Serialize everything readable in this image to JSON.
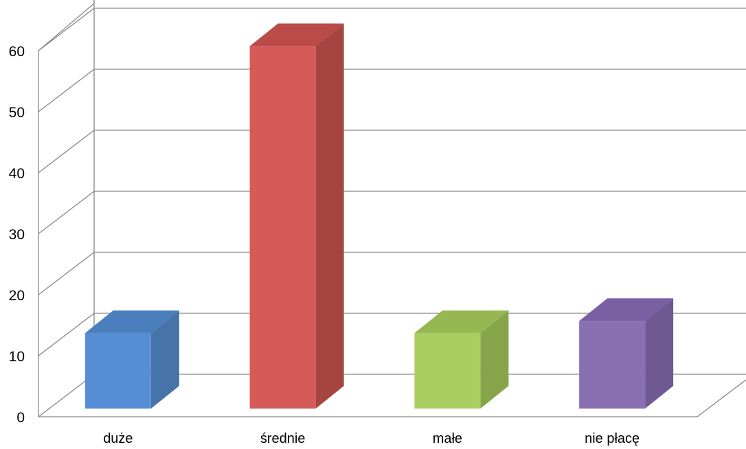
{
  "chart_data": {
    "type": "bar",
    "style": "3d-column",
    "categories": [
      "duże",
      "średnie",
      "małe",
      "nie płacę"
    ],
    "values": [
      12.5,
      60,
      12.5,
      14.5
    ],
    "ylim": [
      0,
      60
    ],
    "yticks": [
      0,
      10,
      20,
      30,
      40,
      50,
      60
    ],
    "title": "",
    "xlabel": "",
    "ylabel": "",
    "grid": true,
    "legend": "none",
    "colors": {
      "bars": [
        "#558ED5",
        "#D55A58",
        "#A9CE62",
        "#8A70B3"
      ],
      "bar_sides": [
        "#4674A9",
        "#A64442",
        "#86A54A",
        "#6E5993"
      ],
      "bar_tops": [
        "#4A7EBD",
        "#BB4B49",
        "#95B853",
        "#7A60A3"
      ],
      "grid": "#868686"
    }
  }
}
